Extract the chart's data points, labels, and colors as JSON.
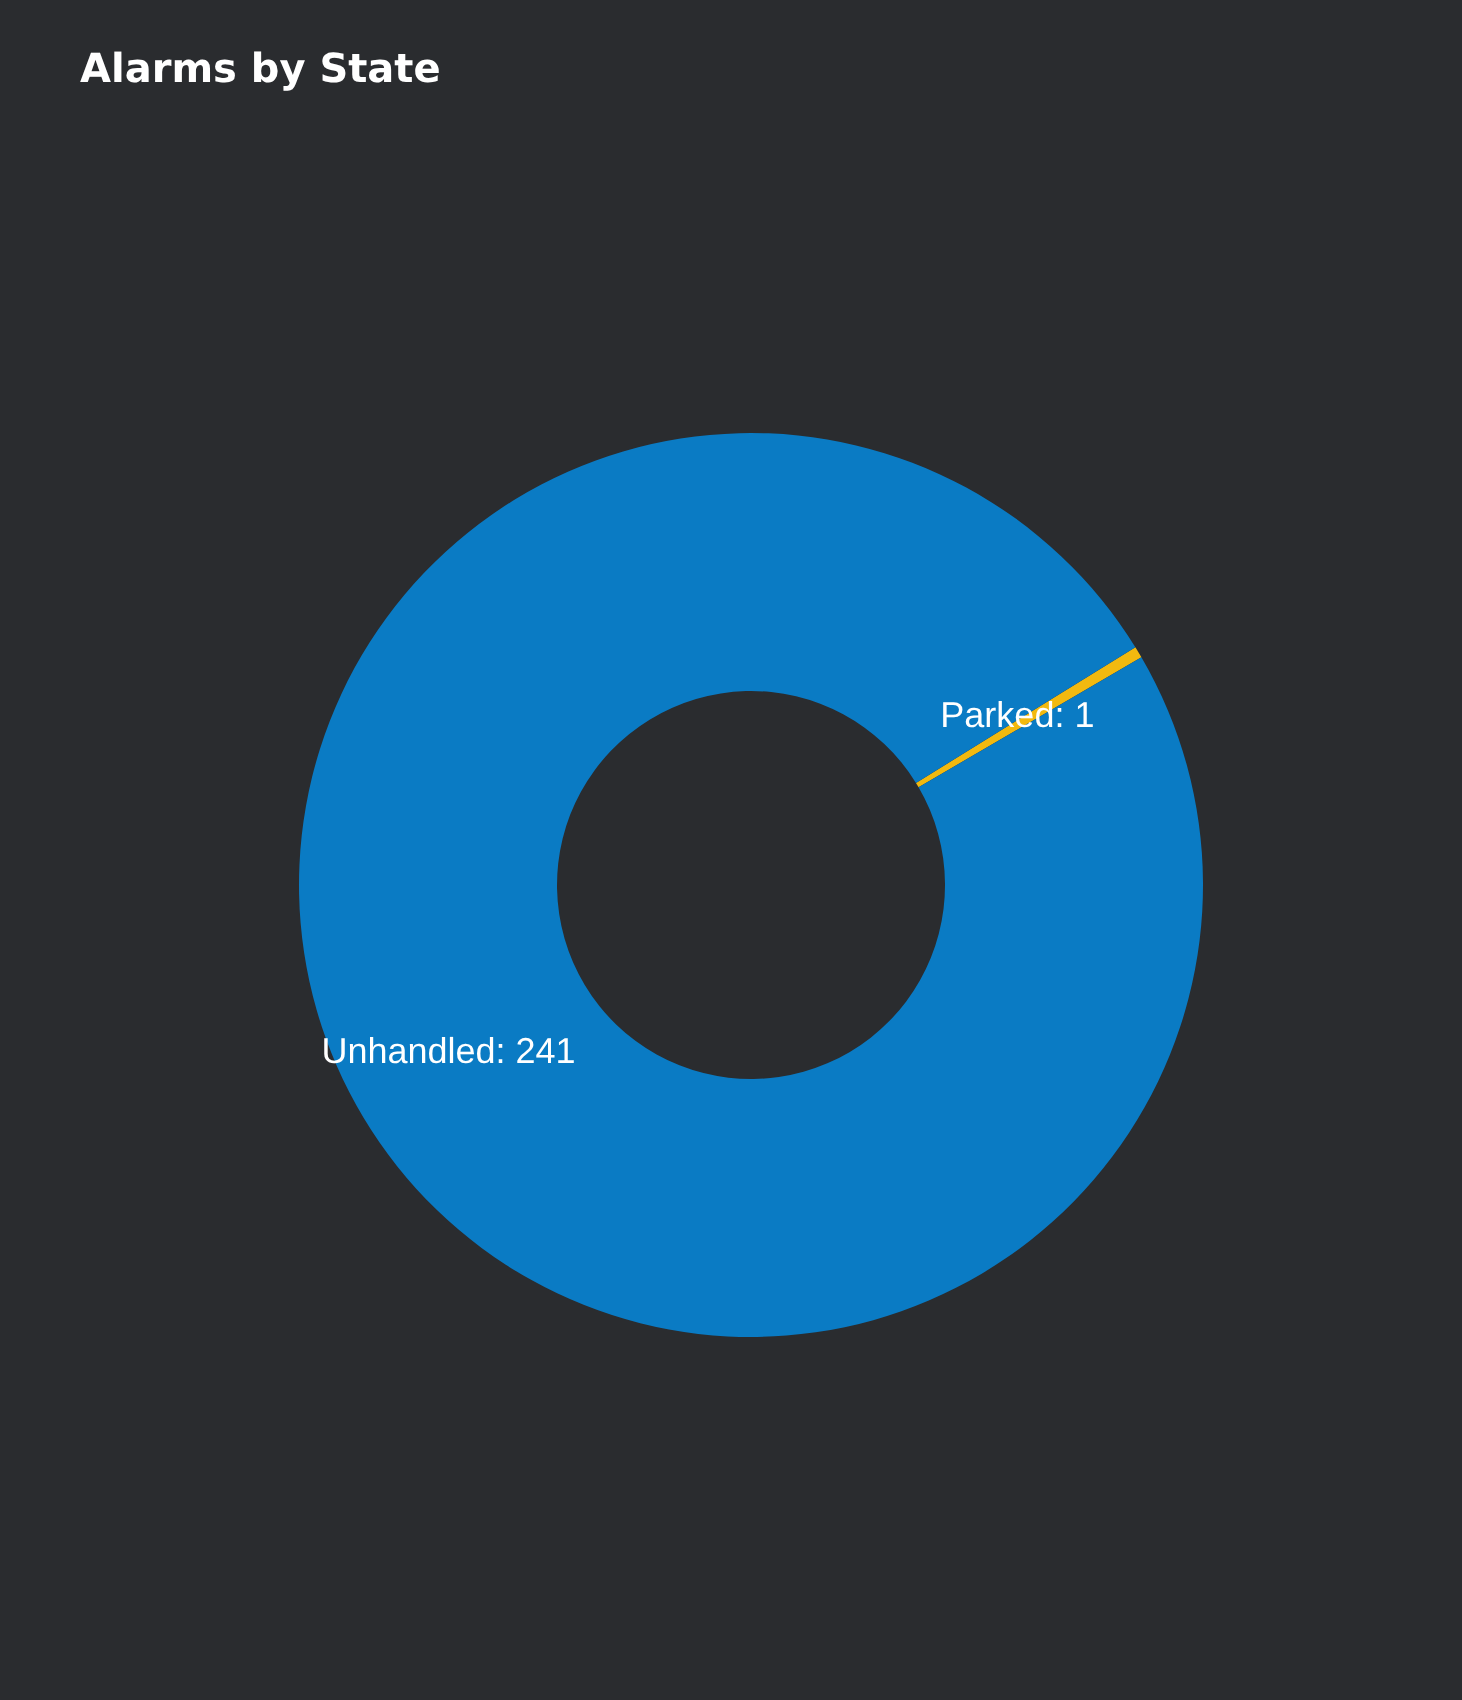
{
  "chart_data": {
    "type": "donut",
    "title": "Alarms by State",
    "categories": [
      "Parked",
      "Unhandled"
    ],
    "values": [
      1,
      241
    ],
    "value_labels": [
      ": 1",
      ": 241"
    ],
    "colors": [
      "#f2b90f",
      "#0a7bc4"
    ],
    "legend": false
  }
}
